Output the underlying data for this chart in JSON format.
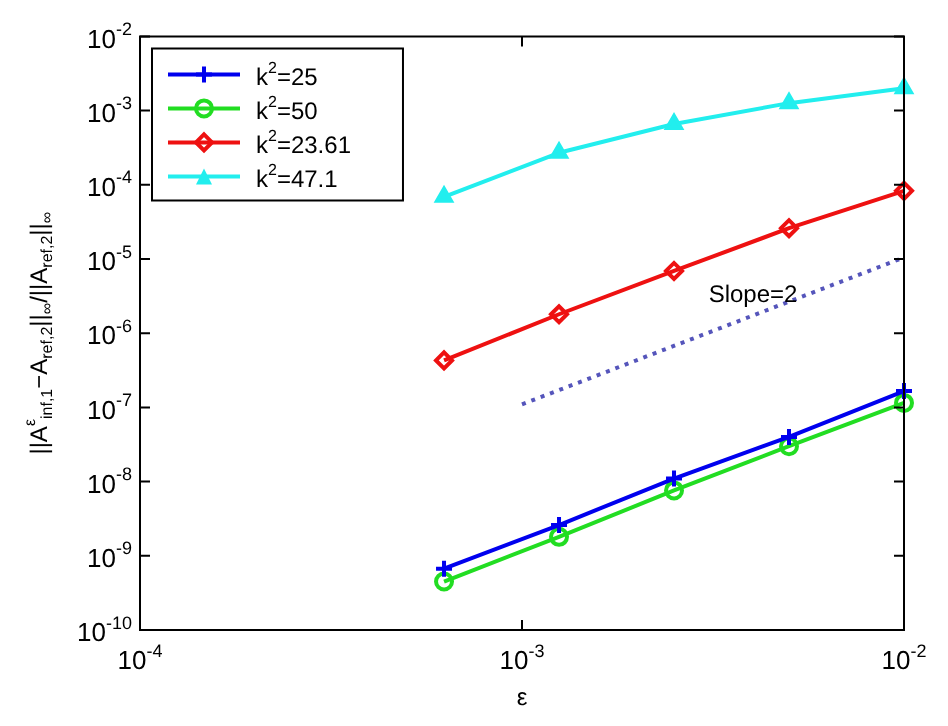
{
  "chart_data": {
    "type": "line",
    "xlabel": "ε",
    "ylabel": "||A$^{ε}$$_{inf,1}$−A$_{ref,2}$||$_{∞}$/||A$_{ref,2}$||$_{∞}$",
    "log": "xy",
    "grid": false,
    "legend": "top left",
    "xlim": [
      0.0001,
      0.01
    ],
    "xticks": [
      {
        "value": 0.0001,
        "label": "10$^{-4}$"
      },
      {
        "value": 0.001,
        "label": "10$^{-3}$"
      },
      {
        "value": 0.01,
        "label": "10$^{-2}$"
      }
    ],
    "ylim": [
      1e-10,
      0.01
    ],
    "yticks": [
      {
        "value": 1e-10,
        "label": "10$^{-10}$"
      },
      {
        "value": 1e-09,
        "label": "10$^{-9}$"
      },
      {
        "value": 1e-08,
        "label": "10$^{-8}$"
      },
      {
        "value": 1e-07,
        "label": "10$^{-7}$"
      },
      {
        "value": 1e-06,
        "label": "10$^{-6}$"
      },
      {
        "value": 1e-05,
        "label": "10$^{-5}$"
      },
      {
        "value": 0.0001,
        "label": "10$^{-4}$"
      },
      {
        "value": 0.001,
        "label": "10$^{-3}$"
      },
      {
        "value": 0.01,
        "label": "10$^{-2}$"
      }
    ],
    "x": [
      0.000625,
      0.00125,
      0.0025,
      0.005,
      0.01
    ],
    "series": [
      {
        "name": "k$^{2}$=25",
        "color": "#0000ee",
        "marker": "cross",
        "values": [
          6.7e-10,
          2.6e-09,
          1.1e-08,
          4e-08,
          1.66e-07
        ]
      },
      {
        "name": "k$^{2}$=50",
        "color": "#22dd22",
        "marker": "circle",
        "values": [
          4.5e-10,
          1.8e-09,
          7.6e-09,
          3e-08,
          1.15e-07
        ]
      },
      {
        "name": "k$^{2}$=23.61",
        "color": "#ee1111",
        "marker": "diamond",
        "values": [
          4.3e-07,
          1.8e-06,
          6.9e-06,
          2.6e-05,
          8.3e-05
        ]
      },
      {
        "name": "k$^{2}$=47.1",
        "color": "#22eeee",
        "marker": "triangle",
        "values": [
          6.9e-05,
          0.00027,
          0.00066,
          0.00126,
          0.002
        ]
      },
      {
        "type": "line",
        "color": "#5555bb",
        "marker": "none",
        "line_style": "dotted",
        "x": [
          0.001,
          0.01
        ],
        "values": [
          1.1e-07,
          1.05e-05
        ]
      }
    ],
    "annotations": [
      "Slope=2"
    ]
  }
}
